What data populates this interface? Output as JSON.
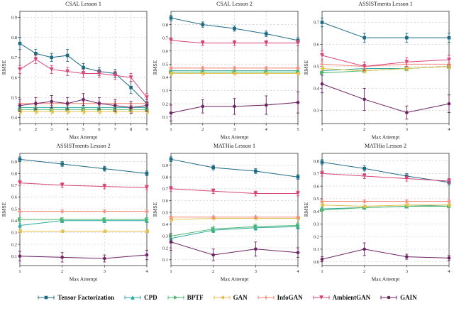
{
  "legend": {
    "items": [
      {
        "label": "Tensor Factorization",
        "color": "#1d6a85",
        "marker": "square"
      },
      {
        "label": "CPD",
        "color": "#2aa8a0",
        "marker": "triangle-up"
      },
      {
        "label": "BPTF",
        "color": "#4bb76c",
        "marker": "triangle-right"
      },
      {
        "label": "GAN",
        "color": "#e3c04b",
        "marker": "triangle-left"
      },
      {
        "label": "InfoGAN",
        "color": "#f08576",
        "marker": "plus"
      },
      {
        "label": "AmbientGAN",
        "color": "#d64577",
        "marker": "triangle-down"
      },
      {
        "label": "GAIN",
        "color": "#6c2263",
        "marker": "circle"
      }
    ]
  },
  "chart_data": [
    {
      "type": "line",
      "title": "CSAL Lesson 1",
      "xlabel": "Max Attempt",
      "ylabel": "RMSE",
      "x": [
        1,
        2,
        3,
        4,
        5,
        6,
        7,
        8,
        9
      ],
      "ylim": [
        0.37,
        0.93
      ],
      "yticks": [
        0.4,
        0.5,
        0.6,
        0.7,
        0.8,
        0.9
      ],
      "grid": true,
      "series": [
        {
          "name": "Tensor Factorization",
          "values": [
            0.77,
            0.72,
            0.7,
            0.71,
            0.65,
            0.63,
            0.62,
            0.55,
            0.47
          ],
          "errors": [
            0.03,
            0.02,
            0.02,
            0.03,
            0.02,
            0.02,
            0.02,
            0.03,
            0.02
          ]
        },
        {
          "name": "CPD",
          "values": [
            0.45,
            0.45,
            0.45,
            0.45,
            0.45,
            0.45,
            0.45,
            0.45,
            0.45
          ],
          "errors": [
            0.01,
            0.01,
            0.01,
            0.01,
            0.01,
            0.01,
            0.01,
            0.01,
            0.01
          ]
        },
        {
          "name": "BPTF",
          "values": [
            0.44,
            0.44,
            0.44,
            0.44,
            0.44,
            0.44,
            0.44,
            0.44,
            0.44
          ],
          "errors": [
            0.01,
            0.01,
            0.01,
            0.01,
            0.01,
            0.01,
            0.01,
            0.01,
            0.01
          ]
        },
        {
          "name": "GAN",
          "values": [
            0.43,
            0.43,
            0.43,
            0.43,
            0.43,
            0.43,
            0.43,
            0.43,
            0.43
          ],
          "errors": [
            0.01,
            0.01,
            0.01,
            0.01,
            0.01,
            0.01,
            0.01,
            0.01,
            0.01
          ]
        },
        {
          "name": "InfoGAN",
          "values": [
            0.47,
            0.47,
            0.47,
            0.47,
            0.47,
            0.47,
            0.47,
            0.47,
            0.47
          ],
          "errors": [
            0.01,
            0.01,
            0.01,
            0.01,
            0.01,
            0.01,
            0.01,
            0.01,
            0.01
          ]
        },
        {
          "name": "AmbientGAN",
          "values": [
            0.64,
            0.69,
            0.64,
            0.63,
            0.62,
            0.62,
            0.61,
            0.6,
            0.5
          ],
          "errors": [
            0.02,
            0.02,
            0.02,
            0.02,
            0.02,
            0.02,
            0.02,
            0.02,
            0.02
          ]
        },
        {
          "name": "GAIN",
          "values": [
            0.46,
            0.47,
            0.48,
            0.47,
            0.49,
            0.47,
            0.46,
            0.45,
            0.46
          ],
          "errors": [
            0.03,
            0.03,
            0.03,
            0.03,
            0.03,
            0.03,
            0.03,
            0.03,
            0.03
          ]
        }
      ]
    },
    {
      "type": "line",
      "title": "CSAL Lesson 2",
      "xlabel": "Max Attempt",
      "ylabel": "RMSE",
      "x": [
        1,
        2,
        3,
        4,
        5
      ],
      "ylim": [
        0.05,
        0.9
      ],
      "yticks": [
        0.1,
        0.2,
        0.3,
        0.4,
        0.5,
        0.6,
        0.7,
        0.8
      ],
      "grid": true,
      "series": [
        {
          "name": "Tensor Factorization",
          "values": [
            0.85,
            0.8,
            0.77,
            0.73,
            0.68
          ],
          "errors": [
            0.02,
            0.02,
            0.02,
            0.02,
            0.02
          ]
        },
        {
          "name": "CPD",
          "values": [
            0.45,
            0.45,
            0.45,
            0.45,
            0.45
          ],
          "errors": [
            0.01,
            0.01,
            0.01,
            0.01,
            0.01
          ]
        },
        {
          "name": "BPTF",
          "values": [
            0.44,
            0.44,
            0.44,
            0.44,
            0.44
          ],
          "errors": [
            0.01,
            0.01,
            0.01,
            0.01,
            0.01
          ]
        },
        {
          "name": "GAN",
          "values": [
            0.43,
            0.43,
            0.43,
            0.43,
            0.43
          ],
          "errors": [
            0.01,
            0.01,
            0.01,
            0.01,
            0.01
          ]
        },
        {
          "name": "InfoGAN",
          "values": [
            0.47,
            0.47,
            0.47,
            0.47,
            0.47
          ],
          "errors": [
            0.01,
            0.01,
            0.01,
            0.01,
            0.01
          ]
        },
        {
          "name": "AmbientGAN",
          "values": [
            0.68,
            0.66,
            0.66,
            0.66,
            0.66
          ],
          "errors": [
            0.02,
            0.02,
            0.02,
            0.02,
            0.02
          ]
        },
        {
          "name": "GAIN",
          "values": [
            0.13,
            0.18,
            0.18,
            0.19,
            0.21
          ],
          "errors": [
            0.06,
            0.05,
            0.06,
            0.07,
            0.08
          ]
        }
      ]
    },
    {
      "type": "line",
      "title": "ASSISTments Lesson 1",
      "xlabel": "Max Attempt",
      "ylabel": "RMSE",
      "x": [
        1,
        2,
        3,
        4
      ],
      "ylim": [
        0.24,
        0.75
      ],
      "yticks": [
        0.3,
        0.4,
        0.5,
        0.6,
        0.7
      ],
      "grid": true,
      "series": [
        {
          "name": "Tensor Factorization",
          "values": [
            0.7,
            0.63,
            0.63,
            0.63
          ],
          "errors": [
            0.02,
            0.02,
            0.02,
            0.02
          ]
        },
        {
          "name": "CPD",
          "values": [
            0.48,
            0.49,
            0.49,
            0.5
          ],
          "errors": [
            0.01,
            0.01,
            0.01,
            0.01
          ]
        },
        {
          "name": "BPTF",
          "values": [
            0.47,
            0.48,
            0.49,
            0.5
          ],
          "errors": [
            0.01,
            0.01,
            0.01,
            0.01
          ]
        },
        {
          "name": "GAN",
          "values": [
            0.49,
            0.48,
            0.49,
            0.5
          ],
          "errors": [
            0.01,
            0.01,
            0.01,
            0.01
          ]
        },
        {
          "name": "InfoGAN",
          "values": [
            0.51,
            0.5,
            0.51,
            0.51
          ],
          "errors": [
            0.01,
            0.01,
            0.01,
            0.01
          ]
        },
        {
          "name": "AmbientGAN",
          "values": [
            0.55,
            0.5,
            0.52,
            0.53
          ],
          "errors": [
            0.02,
            0.02,
            0.02,
            0.02
          ]
        },
        {
          "name": "GAIN",
          "values": [
            0.42,
            0.35,
            0.29,
            0.33
          ],
          "errors": [
            0.04,
            0.05,
            0.03,
            0.04
          ]
        }
      ]
    },
    {
      "type": "line",
      "title": "ASSISTments Lesson 2",
      "xlabel": "Max Attempt",
      "ylabel": "RMSE",
      "x": [
        1,
        2,
        3,
        4
      ],
      "ylim": [
        0.02,
        0.97
      ],
      "yticks": [
        0.1,
        0.2,
        0.3,
        0.4,
        0.5,
        0.6,
        0.7,
        0.8,
        0.9
      ],
      "grid": true,
      "series": [
        {
          "name": "Tensor Factorization",
          "values": [
            0.92,
            0.88,
            0.84,
            0.8
          ],
          "errors": [
            0.02,
            0.02,
            0.02,
            0.02
          ]
        },
        {
          "name": "CPD",
          "values": [
            0.36,
            0.4,
            0.4,
            0.4
          ],
          "errors": [
            0.015,
            0.015,
            0.015,
            0.015
          ]
        },
        {
          "name": "BPTF",
          "values": [
            0.41,
            0.41,
            0.41,
            0.41
          ],
          "errors": [
            0.015,
            0.015,
            0.015,
            0.015
          ]
        },
        {
          "name": "GAN",
          "values": [
            0.31,
            0.31,
            0.31,
            0.31
          ],
          "errors": [
            0.01,
            0.01,
            0.01,
            0.01
          ]
        },
        {
          "name": "InfoGAN",
          "values": [
            0.48,
            0.48,
            0.48,
            0.48
          ],
          "errors": [
            0.01,
            0.01,
            0.01,
            0.01
          ]
        },
        {
          "name": "AmbientGAN",
          "values": [
            0.72,
            0.7,
            0.69,
            0.68
          ],
          "errors": [
            0.02,
            0.02,
            0.02,
            0.02
          ]
        },
        {
          "name": "GAIN",
          "values": [
            0.1,
            0.09,
            0.08,
            0.11
          ],
          "errors": [
            0.04,
            0.04,
            0.03,
            0.04
          ]
        }
      ]
    },
    {
      "type": "line",
      "title": "MATHia Lesson 1",
      "xlabel": "Max Attempt",
      "ylabel": "RMSE",
      "x": [
        1,
        2,
        3,
        4
      ],
      "ylim": [
        0.05,
        1.0
      ],
      "yticks": [
        0.1,
        0.2,
        0.3,
        0.4,
        0.5,
        0.6,
        0.7,
        0.8,
        0.9
      ],
      "grid": true,
      "series": [
        {
          "name": "Tensor Factorization",
          "values": [
            0.95,
            0.88,
            0.85,
            0.8
          ],
          "errors": [
            0.02,
            0.02,
            0.02,
            0.02
          ]
        },
        {
          "name": "CPD",
          "values": [
            0.28,
            0.35,
            0.37,
            0.38
          ],
          "errors": [
            0.04,
            0.02,
            0.02,
            0.02
          ]
        },
        {
          "name": "BPTF",
          "values": [
            0.3,
            0.36,
            0.38,
            0.39
          ],
          "errors": [
            0.02,
            0.02,
            0.02,
            0.02
          ]
        },
        {
          "name": "GAN",
          "values": [
            0.44,
            0.45,
            0.45,
            0.45
          ],
          "errors": [
            0.01,
            0.01,
            0.01,
            0.01
          ]
        },
        {
          "name": "InfoGAN",
          "values": [
            0.46,
            0.46,
            0.46,
            0.46
          ],
          "errors": [
            0.01,
            0.01,
            0.01,
            0.01
          ]
        },
        {
          "name": "AmbientGAN",
          "values": [
            0.7,
            0.68,
            0.66,
            0.66
          ],
          "errors": [
            0.02,
            0.02,
            0.02,
            0.02
          ]
        },
        {
          "name": "GAIN",
          "values": [
            0.25,
            0.14,
            0.19,
            0.16
          ],
          "errors": [
            0.07,
            0.05,
            0.06,
            0.04
          ]
        }
      ]
    },
    {
      "type": "line",
      "title": "MATHia Lesson 2",
      "xlabel": "Max Attempt",
      "ylabel": "RMSE",
      "x": [
        1,
        2,
        3,
        4
      ],
      "ylim": [
        -0.03,
        0.86
      ],
      "yticks": [
        0.0,
        0.1,
        0.2,
        0.3,
        0.4,
        0.5,
        0.6,
        0.7,
        0.8
      ],
      "grid": true,
      "series": [
        {
          "name": "Tensor Factorization",
          "values": [
            0.79,
            0.74,
            0.68,
            0.63
          ],
          "errors": [
            0.02,
            0.02,
            0.02,
            0.02
          ]
        },
        {
          "name": "CPD",
          "values": [
            0.42,
            0.43,
            0.44,
            0.45
          ],
          "errors": [
            0.01,
            0.01,
            0.01,
            0.01
          ]
        },
        {
          "name": "BPTF",
          "values": [
            0.41,
            0.43,
            0.44,
            0.44
          ],
          "errors": [
            0.01,
            0.01,
            0.01,
            0.01
          ]
        },
        {
          "name": "GAN",
          "values": [
            0.45,
            0.44,
            0.45,
            0.45
          ],
          "errors": [
            0.01,
            0.01,
            0.01,
            0.01
          ]
        },
        {
          "name": "InfoGAN",
          "values": [
            0.48,
            0.48,
            0.48,
            0.48
          ],
          "errors": [
            0.01,
            0.01,
            0.01,
            0.01
          ]
        },
        {
          "name": "AmbientGAN",
          "values": [
            0.7,
            0.68,
            0.66,
            0.64
          ],
          "errors": [
            0.02,
            0.02,
            0.02,
            0.02
          ]
        },
        {
          "name": "GAIN",
          "values": [
            0.02,
            0.1,
            0.04,
            0.03
          ],
          "errors": [
            0.02,
            0.05,
            0.02,
            0.02
          ]
        }
      ]
    }
  ]
}
